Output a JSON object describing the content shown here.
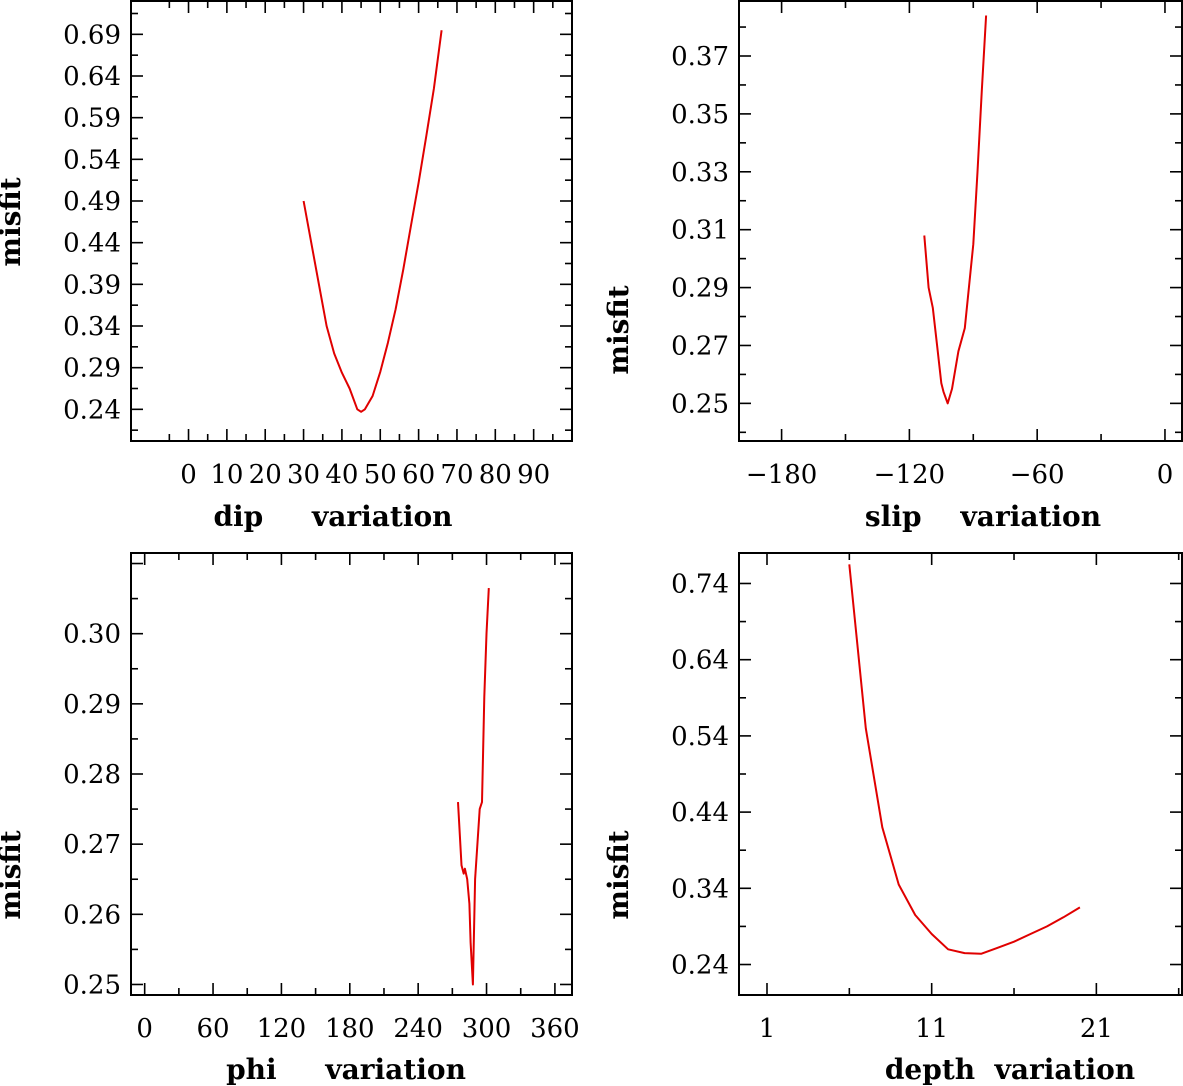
{
  "chart_data": [
    {
      "type": "line",
      "title": "",
      "xlabel": "dip     variation",
      "ylabel": "misfit",
      "xlim": [
        -15,
        100
      ],
      "ylim": [
        0.202,
        0.73
      ],
      "xticks": [
        0,
        10,
        20,
        30,
        40,
        50,
        60,
        70,
        80,
        90
      ],
      "xtick_labels": [
        "0",
        "10",
        "20",
        "30",
        "40",
        "50",
        "60",
        "70",
        "80",
        "90"
      ],
      "yticks": [
        0.24,
        0.29,
        0.34,
        0.39,
        0.44,
        0.49,
        0.54,
        0.59,
        0.64,
        0.69
      ],
      "ytick_labels": [
        "0.24",
        "0.29",
        "0.34",
        "0.39",
        "0.44",
        "0.49",
        "0.54",
        "0.59",
        "0.64",
        "0.69"
      ],
      "series": [
        {
          "name": "misfit",
          "color": "#e00000",
          "x": [
            30,
            34,
            36,
            38,
            40,
            42,
            44,
            45,
            46,
            48,
            50,
            52,
            54,
            56,
            58,
            60,
            62,
            64,
            66
          ],
          "y": [
            0.49,
            0.39,
            0.34,
            0.307,
            0.284,
            0.265,
            0.24,
            0.237,
            0.24,
            0.256,
            0.285,
            0.32,
            0.36,
            0.408,
            0.46,
            0.512,
            0.568,
            0.625,
            0.695
          ]
        }
      ]
    },
    {
      "type": "line",
      "title": "",
      "xlabel": "slip    variation",
      "ylabel": "misfit",
      "xlim": [
        -200,
        8
      ],
      "ylim": [
        0.237,
        0.389
      ],
      "xticks": [
        -180,
        -120,
        -60,
        0
      ],
      "xtick_labels": [
        "−180",
        "−120",
        "−60",
        "0"
      ],
      "yticks": [
        0.25,
        0.27,
        0.29,
        0.31,
        0.33,
        0.35,
        0.37
      ],
      "ytick_labels": [
        "0.25",
        "0.27",
        "0.29",
        "0.31",
        "0.33",
        "0.35",
        "0.37"
      ],
      "series": [
        {
          "name": "misfit",
          "color": "#e00000",
          "x": [
            -113,
            -111,
            -109,
            -107,
            -105,
            -104,
            -102,
            -100,
            -97,
            -94,
            -90,
            -88,
            -86,
            -84
          ],
          "y": [
            0.308,
            0.29,
            0.283,
            0.27,
            0.257,
            0.254,
            0.25,
            0.255,
            0.268,
            0.276,
            0.305,
            0.33,
            0.358,
            0.384
          ]
        }
      ]
    },
    {
      "type": "line",
      "title": "",
      "xlabel": "phi     variation",
      "ylabel": "misfit",
      "xlim": [
        -12,
        375
      ],
      "ylim": [
        0.2485,
        0.3115
      ],
      "xticks": [
        0,
        60,
        120,
        180,
        240,
        300,
        360
      ],
      "xtick_labels": [
        "0",
        "60",
        "120",
        "180",
        "240",
        "300",
        "360"
      ],
      "yticks": [
        0.25,
        0.26,
        0.27,
        0.28,
        0.29,
        0.3
      ],
      "ytick_labels": [
        "0.25",
        "0.26",
        "0.27",
        "0.28",
        "0.29",
        "0.30"
      ],
      "series": [
        {
          "name": "misfit",
          "color": "#e00000",
          "x": [
            275,
            278,
            280,
            281,
            283,
            285,
            286,
            288,
            290,
            292,
            294,
            296,
            298,
            300,
            302
          ],
          "y": [
            0.276,
            0.267,
            0.2658,
            0.2665,
            0.265,
            0.2615,
            0.256,
            0.25,
            0.265,
            0.27,
            0.275,
            0.276,
            0.291,
            0.3,
            0.3065
          ]
        }
      ]
    },
    {
      "type": "line",
      "title": "",
      "xlabel": "depth  variation",
      "ylabel": "misfit",
      "xlim": [
        -0.7,
        26.2
      ],
      "ylim": [
        0.2,
        0.78
      ],
      "xticks": [
        1,
        11,
        21
      ],
      "xtick_labels": [
        "1",
        "11",
        "21"
      ],
      "yticks": [
        0.24,
        0.34,
        0.44,
        0.54,
        0.64,
        0.74
      ],
      "ytick_labels": [
        "0.24",
        "0.34",
        "0.44",
        "0.54",
        "0.64",
        "0.74"
      ],
      "series": [
        {
          "name": "misfit",
          "color": "#e00000",
          "x": [
            6,
            7,
            8,
            9,
            10,
            11,
            12,
            13,
            14,
            15,
            16,
            17,
            18,
            19,
            20
          ],
          "y": [
            0.765,
            0.55,
            0.42,
            0.345,
            0.305,
            0.28,
            0.26,
            0.255,
            0.254,
            0.262,
            0.27,
            0.28,
            0.29,
            0.302,
            0.315
          ]
        }
      ]
    }
  ]
}
